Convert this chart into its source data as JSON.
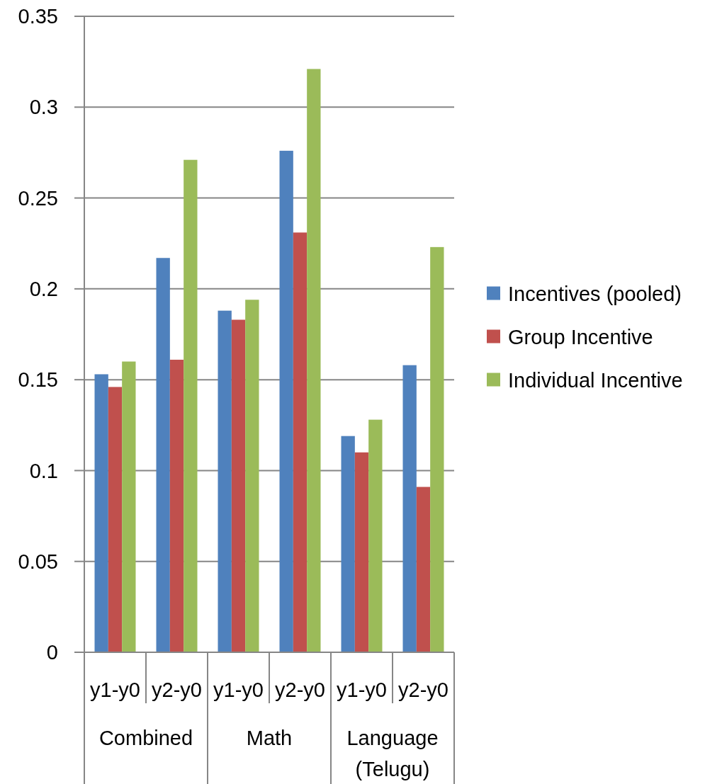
{
  "chart_data": {
    "type": "bar",
    "categories": [
      "y1-y0",
      "y2-y0",
      "y1-y0",
      "y2-y0",
      "y1-y0",
      "y2-y0"
    ],
    "series": [
      {
        "name": "Incentives (pooled)",
        "color": "#4f81bd",
        "values": [
          0.153,
          0.217,
          0.188,
          0.276,
          0.119,
          0.158
        ]
      },
      {
        "name": "Group Incentive",
        "color": "#c0504d",
        "values": [
          0.146,
          0.161,
          0.183,
          0.231,
          0.11,
          0.091
        ]
      },
      {
        "name": "Individual Incentive",
        "color": "#9bbb59",
        "values": [
          0.16,
          0.271,
          0.194,
          0.321,
          0.128,
          0.223
        ]
      }
    ],
    "annotations": [
      "Combined",
      "Math",
      "Language (Telugu)"
    ],
    "ylim": [
      0,
      0.35
    ],
    "yticks": [
      0,
      0.05,
      0.1,
      0.15,
      0.2,
      0.25,
      0.3,
      0.35
    ],
    "grid": "y",
    "legend": "right"
  }
}
